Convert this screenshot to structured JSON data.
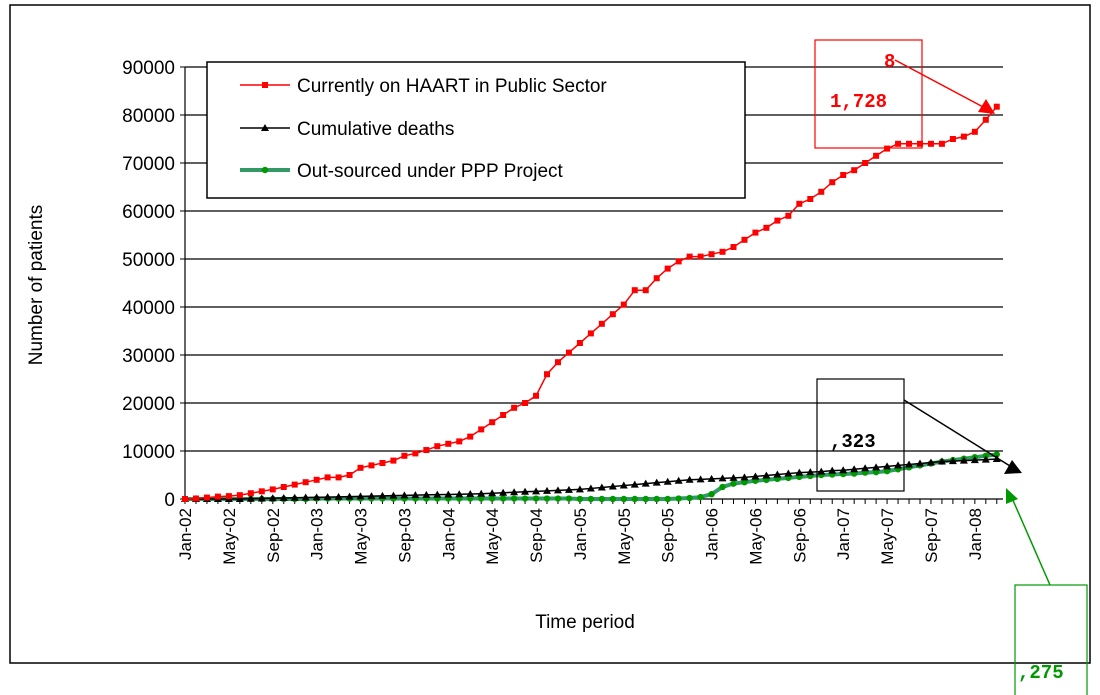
{
  "chart_data": {
    "type": "line",
    "y_label": "Number of patients",
    "x_label": "Time period",
    "categories": [
      "Jan-02",
      null,
      null,
      null,
      "May-02",
      null,
      null,
      null,
      "Sep-02",
      null,
      null,
      null,
      "Jan-03",
      null,
      null,
      null,
      "May-03",
      null,
      null,
      null,
      "Sep-03",
      null,
      null,
      null,
      "Jan-04",
      null,
      null,
      null,
      "May-04",
      null,
      null,
      null,
      "Sep-04",
      null,
      null,
      null,
      "Jan-05",
      null,
      null,
      null,
      "May-05",
      null,
      null,
      null,
      "Sep-05",
      null,
      null,
      null,
      "Jan-06",
      null,
      null,
      null,
      "May-06",
      null,
      null,
      null,
      "Sep-06",
      null,
      null,
      null,
      "Jan-07",
      null,
      null,
      null,
      "May-07",
      null,
      null,
      null,
      "Sep-07",
      null,
      null,
      null,
      "Jan-08",
      null,
      null
    ],
    "series": [
      {
        "name": "Currently on HAART in Public Sector",
        "color": "#ff0000",
        "marker": "square",
        "values": [
          0,
          100,
          300,
          500,
          600,
          800,
          1200,
          1600,
          2000,
          2500,
          3000,
          3500,
          4000,
          4500,
          4500,
          5000,
          6500,
          7000,
          7500,
          8000,
          9000,
          9500,
          10200,
          11000,
          11500,
          12000,
          13000,
          14500,
          16000,
          17500,
          19000,
          20000,
          21500,
          26000,
          28500,
          30500,
          32500,
          34500,
          36500,
          38500,
          40500,
          43500,
          43500,
          46000,
          48000,
          49500,
          50500,
          50500,
          51000,
          51500,
          52500,
          54000,
          55500,
          56500,
          58000,
          59000,
          61500,
          62500,
          64000,
          66000,
          67500,
          68500,
          70000,
          71500,
          73000,
          74000,
          74000,
          74000,
          74000,
          74000,
          75000,
          75500,
          76500,
          79000,
          81728
        ]
      },
      {
        "name": "Cumulative deaths",
        "color": "#000000",
        "marker": "triangle",
        "values": [
          0,
          0,
          0,
          0,
          0,
          0,
          50,
          100,
          150,
          200,
          250,
          300,
          350,
          400,
          450,
          500,
          550,
          600,
          650,
          700,
          750,
          800,
          850,
          900,
          950,
          1000,
          1050,
          1100,
          1200,
          1300,
          1400,
          1500,
          1600,
          1700,
          1800,
          1900,
          2000,
          2200,
          2400,
          2600,
          2800,
          3000,
          3200,
          3400,
          3600,
          3800,
          4000,
          4100,
          4200,
          4300,
          4400,
          4500,
          4700,
          4900,
          5100,
          5300,
          5500,
          5600,
          5700,
          5900,
          6000,
          6200,
          6400,
          6600,
          6800,
          7000,
          7200,
          7400,
          7600,
          7800,
          7900,
          8000,
          8100,
          8200,
          8323
        ]
      },
      {
        "name": "Out-sourced under PPP Project",
        "color": "#339966",
        "marker_color": "#009900",
        "marker": "circle",
        "values": [
          0,
          0,
          0,
          0,
          0,
          0,
          0,
          0,
          0,
          0,
          0,
          0,
          100,
          100,
          100,
          100,
          100,
          100,
          100,
          100,
          100,
          100,
          100,
          100,
          100,
          100,
          100,
          100,
          100,
          100,
          100,
          100,
          100,
          100,
          100,
          100,
          0,
          0,
          0,
          0,
          0,
          0,
          0,
          0,
          0,
          100,
          200,
          400,
          1000,
          2500,
          3200,
          3500,
          3800,
          4000,
          4200,
          4400,
          4600,
          4800,
          5000,
          5100,
          5200,
          5300,
          5500,
          5600,
          5800,
          6200,
          6600,
          7000,
          7400,
          7800,
          8100,
          8400,
          8700,
          9000,
          9275
        ]
      }
    ],
    "ylim": [
      0,
      90000
    ],
    "yticks": [
      0,
      10000,
      20000,
      30000,
      40000,
      50000,
      60000,
      70000,
      80000,
      90000
    ],
    "grid": true,
    "legend": "top-left",
    "annotations": [
      "8",
      "1,728",
      ",323",
      ",275"
    ]
  }
}
